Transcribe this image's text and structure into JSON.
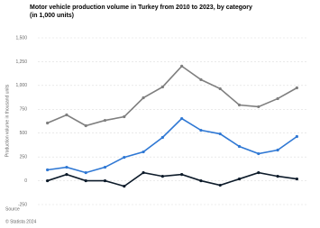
{
  "chart_data": {
    "type": "line",
    "title": "Motor vehicle production volume in Turkey from 2010 to 2023, by category (in 1,000 units)",
    "y_label": "Production volume in thousand units",
    "source": "Source",
    "copyright": "© Statista 2024",
    "categories": [
      null,
      null,
      null,
      null,
      null,
      null,
      null,
      null,
      null,
      null,
      null,
      null,
      null,
      null
    ],
    "series": [
      {
        "color": "#7f7f7f",
        "values": [
          606,
          691,
          578,
          634,
          672,
          871,
          985,
          1203,
          1061,
          966,
          795,
          777,
          862,
          975
        ]
      },
      {
        "color": "#2f78d4",
        "values": [
          114,
          142,
          85,
          142,
          246,
          303,
          455,
          653,
          530,
          492,
          360,
          284,
          322,
          464
        ]
      },
      {
        "color": "#0d1b2a",
        "values": [
          0,
          66,
          0,
          0,
          -57,
          85,
          47,
          66,
          0,
          -47,
          19,
          85,
          47,
          19
        ]
      }
    ],
    "ylim": [
      -250,
      1500
    ],
    "yticks": [
      -250,
      0,
      250,
      500,
      750,
      {
        "value": 1000,
        "label": "1,000"
      },
      {
        "value": 1250,
        "label": "1,250"
      },
      {
        "value": 1500,
        "label": "1,500"
      }
    ],
    "grid": true
  }
}
